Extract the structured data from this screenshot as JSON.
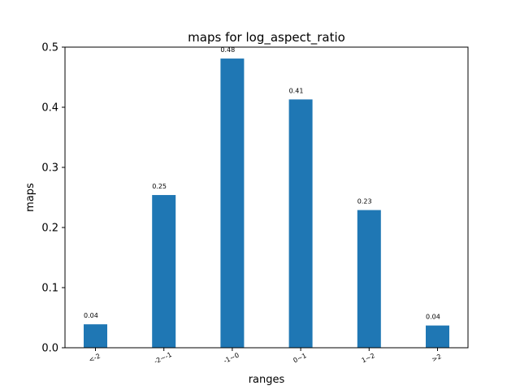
{
  "chart_data": {
    "type": "bar",
    "title": "maps for log_aspect_ratio",
    "xlabel": "ranges",
    "ylabel": "maps",
    "categories": [
      "<-2",
      "-2~-1",
      "-1~0",
      "0~1",
      "1~2",
      ">2"
    ],
    "values": [
      0.039,
      0.254,
      0.481,
      0.413,
      0.229,
      0.037
    ],
    "data_labels": [
      "0.04",
      "0.25",
      "0.48",
      "0.41",
      "0.23",
      "0.04"
    ],
    "ylim": [
      0,
      0.5
    ],
    "yticks": [
      0.0,
      0.1,
      0.2,
      0.3,
      0.4,
      0.5
    ],
    "ytick_labels": [
      "0.0",
      "0.1",
      "0.2",
      "0.3",
      "0.4",
      "0.5"
    ],
    "grid": false,
    "bar_color": "#1f77b4"
  }
}
